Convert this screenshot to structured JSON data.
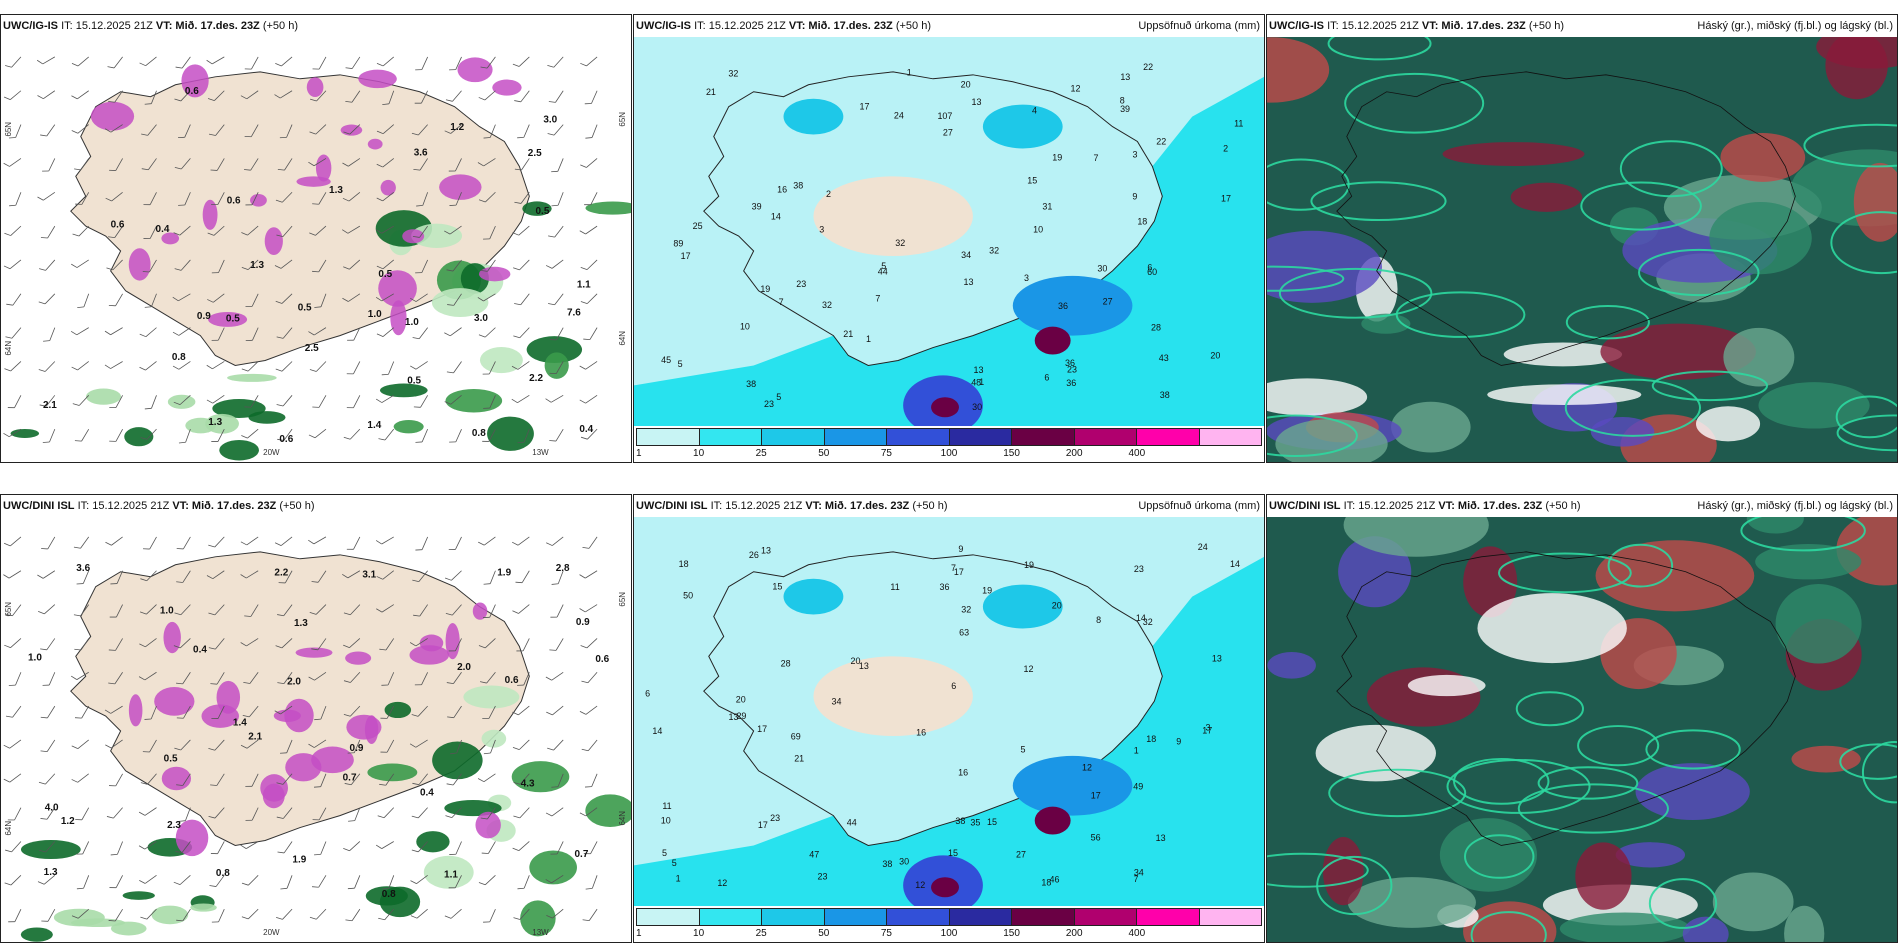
{
  "panels": [
    {
      "model": "UWC/IG-IS",
      "run_label": "IT: 15.12.2025 21Z",
      "valid_label": "VT: Mið. 17.des. 23Z",
      "lead": "(+50 h)",
      "right_title": "",
      "type": "wind-precip",
      "lat_labels": [
        "65N",
        "64N",
        "20W",
        "13W",
        "65N",
        "64N"
      ],
      "values": [
        "0.5",
        "0.6",
        "2.5",
        "3.0",
        "1.3",
        "0.9",
        "0.5",
        "7.6",
        "1.0",
        "2.5",
        "0.8",
        "3.0",
        "1.2",
        "3.6",
        "0.6",
        "1.4",
        "1.3",
        "0.5",
        "0.8",
        "0.6",
        "0.4",
        "0.5",
        "2.2",
        "1.3",
        "0.6",
        "2.1",
        "1.1",
        "1.0",
        "0.4",
        "0.5"
      ]
    },
    {
      "model": "UWC/IG-IS",
      "run_label": "IT: 15.12.2025 21Z",
      "valid_label": "VT: Mið. 17.des. 23Z",
      "lead": "(+50 h)",
      "right_title": "Uppsöfnuð úrkoma (mm)",
      "type": "accum",
      "values": [
        "1",
        "1",
        "2",
        "3",
        "1",
        "5",
        "6",
        "7",
        "8",
        "2",
        "13",
        "17",
        "34",
        "23",
        "38",
        "43",
        "60",
        "39",
        "3",
        "15",
        "21",
        "10",
        "11",
        "19",
        "13",
        "14",
        "12",
        "13",
        "10",
        "16",
        "23",
        "3",
        "5",
        "4",
        "27",
        "48",
        "36",
        "32",
        "45",
        "38",
        "23",
        "22",
        "24",
        "36",
        "32",
        "27",
        "32",
        "7",
        "13",
        "19",
        "20",
        "21",
        "18",
        "17",
        "30",
        "39",
        "44",
        "28",
        "25",
        "32",
        "36",
        "38",
        "30",
        "31",
        "22",
        "20",
        "17",
        "5",
        "6",
        "7",
        "9",
        "89",
        "107"
      ]
    },
    {
      "model": "UWC/IG-IS",
      "run_label": "IT: 15.12.2025 21Z",
      "valid_label": "VT: Mið. 17.des. 23Z",
      "lead": "(+50 h)",
      "right_title": "Háský (gr.), miðský (fj.bl.) og lágský (bl.)",
      "type": "cloud"
    },
    {
      "model": "UWC/DINI ISL",
      "run_label": "IT: 15.12.2025 21Z",
      "valid_label": "VT: Mið. 17.des. 23Z",
      "lead": "(+50 h)",
      "right_title": "",
      "type": "wind-precip",
      "lat_labels": [
        "65N",
        "64N",
        "20W",
        "13W",
        "65N",
        "64N"
      ],
      "values": [
        "2.3",
        "1.9",
        "0.4",
        "1.0",
        "0.5",
        "2.8",
        "3.6",
        "2.2",
        "1.3",
        "0.6",
        "1.1",
        "1.4",
        "0.9",
        "2.0",
        "1.0",
        "0.8",
        "0.7",
        "0.6",
        "0.8",
        "0.7",
        "0.9",
        "4.0",
        "3.1",
        "1.3",
        "1.2",
        "2.1",
        "4.3",
        "2.0",
        "0.4",
        "1.9"
      ]
    },
    {
      "model": "UWC/DINI ISL",
      "run_label": "IT: 15.12.2025 21Z",
      "valid_label": "VT: Mið. 17.des. 23Z",
      "lead": "(+50 h)",
      "right_title": "Uppsöfnuð úrkoma (mm)",
      "type": "accum",
      "values": [
        "1",
        "1",
        "13",
        "15",
        "32",
        "63",
        "50",
        "16",
        "17",
        "18",
        "24",
        "26",
        "34",
        "47",
        "23",
        "20",
        "18",
        "12",
        "14",
        "13",
        "11",
        "5",
        "3",
        "10",
        "15",
        "13",
        "12",
        "7",
        "9",
        "19",
        "17",
        "17",
        "20",
        "18",
        "13",
        "12",
        "15",
        "17",
        "19",
        "21",
        "14",
        "13",
        "11",
        "36",
        "56",
        "69",
        "38",
        "27",
        "28",
        "30",
        "29",
        "34",
        "35",
        "46",
        "32",
        "23",
        "16",
        "12",
        "8",
        "5",
        "7",
        "6",
        "9",
        "44",
        "49",
        "20",
        "17",
        "6",
        "14",
        "5",
        "38",
        "23"
      ]
    },
    {
      "model": "UWC/DINI ISL",
      "run_label": "IT: 15.12.2025 21Z",
      "valid_label": "VT: Mið. 17.des. 23Z",
      "lead": "(+50 h)",
      "right_title": "Háský (gr.), miðský (fj.bl.) og lágský (bl.)",
      "type": "cloud"
    }
  ],
  "colorbar": {
    "labels": [
      "1",
      "10",
      "25",
      "50",
      "75",
      "100",
      "150",
      "200",
      "400"
    ],
    "colors": [
      "#c8f4f4",
      "#33e6f0",
      "#1ec8e8",
      "#1a96e6",
      "#3250d8",
      "#2a2aa0",
      "#6a0044",
      "#b0006e",
      "#ff00aa",
      "#ffb4f0"
    ]
  },
  "colors": {
    "land": "#f0e2d2",
    "sea_low": "#b9f2f6",
    "sea_mid": "#28e2ee",
    "precip_magenta": "#c44ec4",
    "precip_green": "#0d6a2a",
    "cloud_dark": "#1f5a4e",
    "cloud_red": "#8a1a3a",
    "cloud_blue": "#5a4ac0"
  }
}
